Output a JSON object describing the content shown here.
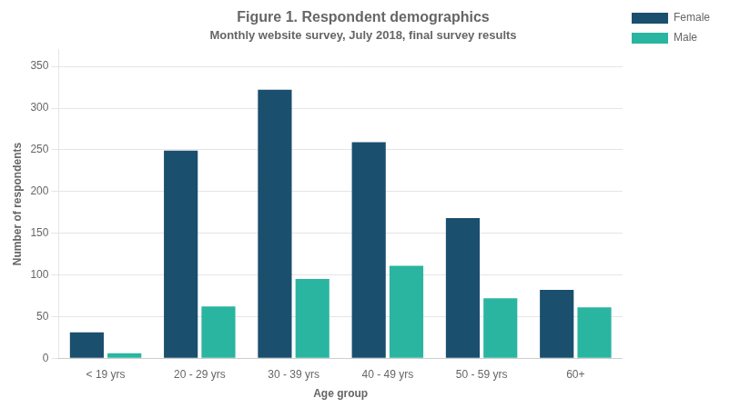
{
  "chart_data": {
    "type": "bar",
    "title": "Figure 1. Respondent demographics",
    "subtitle": "Monthly website survey, July 2018, final survey results",
    "xlabel": "Age group",
    "ylabel": "Number of respondents",
    "categories": [
      "< 19 yrs",
      "20 - 29 yrs",
      "30 - 39 yrs",
      "40 - 49 yrs",
      "50 - 59 yrs",
      "60+"
    ],
    "series": [
      {
        "name": "Female",
        "color": "#1a4f6e",
        "values": [
          31,
          249,
          322,
          259,
          168,
          82
        ]
      },
      {
        "name": "Male",
        "color": "#2ab5a0",
        "values": [
          6,
          62,
          95,
          111,
          72,
          61
        ]
      }
    ],
    "ylim": [
      0,
      370
    ],
    "yticks": [
      0,
      50,
      100,
      150,
      200,
      250,
      300,
      350
    ],
    "grid": true,
    "legend": "right"
  }
}
